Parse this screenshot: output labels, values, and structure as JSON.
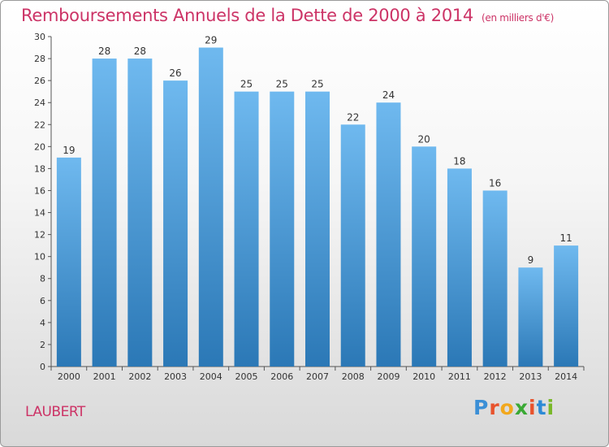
{
  "title": "Remboursements Annuels de la Dette de 2000 à 2014",
  "unit": "(en milliers d'€)",
  "commune": "LAUBERT",
  "brand": {
    "letters": [
      "P",
      "r",
      "o",
      "x",
      "i",
      "t",
      "i"
    ],
    "colors": [
      "#3b8fd6",
      "#e8532d",
      "#f2a81d",
      "#3aa935",
      "#e8532d",
      "#2c8ad6",
      "#79b829"
    ]
  },
  "chart_data": {
    "type": "bar",
    "categories": [
      "2000",
      "2001",
      "2002",
      "2003",
      "2004",
      "2005",
      "2006",
      "2007",
      "2008",
      "2009",
      "2010",
      "2011",
      "2012",
      "2013",
      "2014"
    ],
    "values": [
      19,
      28,
      28,
      26,
      29,
      25,
      25,
      25,
      22,
      24,
      20,
      18,
      16,
      9,
      11
    ],
    "title": "Remboursements Annuels de la Dette de 2000 à 2014",
    "xlabel": "",
    "ylabel": "",
    "ylim": [
      0,
      30
    ],
    "yticks": [
      0,
      2,
      4,
      6,
      8,
      10,
      12,
      14,
      16,
      18,
      20,
      22,
      24,
      26,
      28,
      30
    ],
    "grid": false,
    "bar_color_top": "#6fb9ef",
    "bar_color_bottom": "#2b78b6"
  }
}
